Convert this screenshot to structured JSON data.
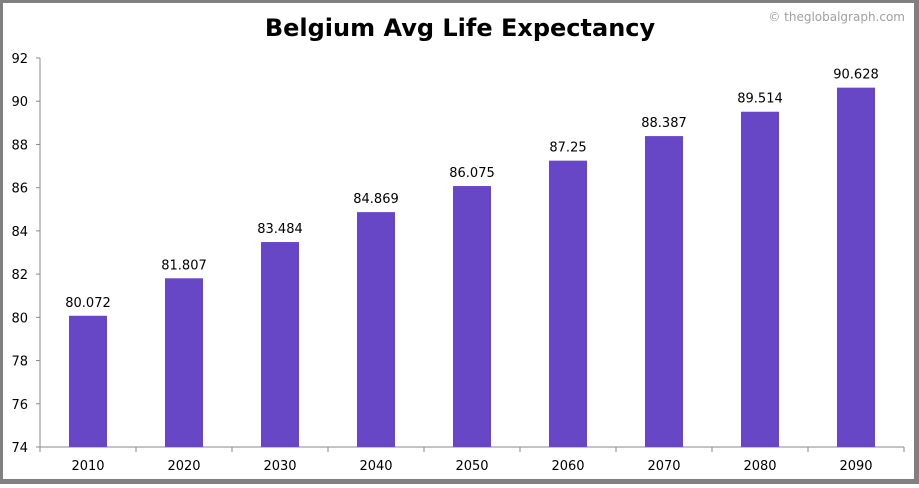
{
  "chart_data": {
    "type": "bar",
    "title": "Belgium Avg Life Expectancy",
    "watermark": "© theglobalgraph.com",
    "categories": [
      "2010",
      "2020",
      "2030",
      "2040",
      "2050",
      "2060",
      "2070",
      "2080",
      "2090"
    ],
    "values": [
      80.072,
      81.807,
      83.484,
      84.869,
      86.075,
      87.25,
      88.387,
      89.514,
      90.628
    ],
    "data_labels": [
      "80.072",
      "81.807",
      "83.484",
      "84.869",
      "86.075",
      "87.25",
      "88.387",
      "89.514",
      "90.628"
    ],
    "xlabel": "",
    "ylabel": "",
    "ylim": [
      74,
      92
    ],
    "yticks": [
      "74",
      "76",
      "78",
      "80",
      "82",
      "84",
      "86",
      "88",
      "90",
      "92"
    ],
    "grid": false,
    "legend": "none",
    "bar_color": "#6847c6"
  }
}
